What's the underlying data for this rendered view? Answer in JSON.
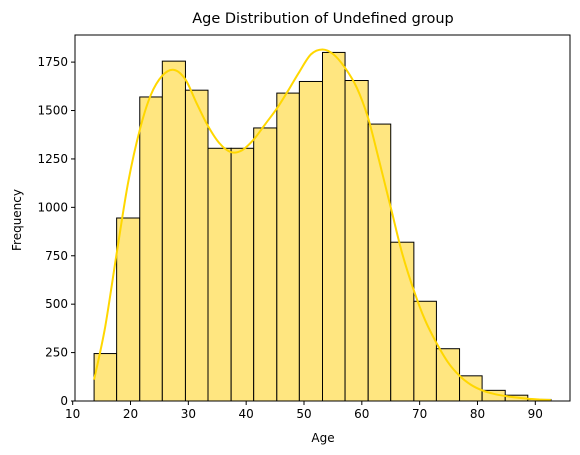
{
  "chart_data": {
    "type": "bar",
    "title": "Age Distribution of Undefined group",
    "xlabel": "Age",
    "ylabel": "Frequency",
    "xlim": [
      10.4,
      96
    ],
    "ylim": [
      0,
      1890
    ],
    "xticks": [
      10,
      20,
      30,
      40,
      50,
      60,
      70,
      80,
      90
    ],
    "yticks": [
      0,
      250,
      500,
      750,
      1000,
      1250,
      1500,
      1750
    ],
    "grid": false,
    "colors": {
      "bar_fill": "#ffe680",
      "bar_edge": "#000000",
      "kde_line": "#ffd700"
    },
    "bins": [
      {
        "x0": 13.7,
        "x1": 17.6,
        "value": 245
      },
      {
        "x0": 17.6,
        "x1": 21.6,
        "value": 945
      },
      {
        "x0": 21.6,
        "x1": 25.5,
        "value": 1570
      },
      {
        "x0": 25.5,
        "x1": 29.5,
        "value": 1755
      },
      {
        "x0": 29.5,
        "x1": 33.4,
        "value": 1605
      },
      {
        "x0": 33.4,
        "x1": 37.4,
        "value": 1305
      },
      {
        "x0": 37.4,
        "x1": 41.3,
        "value": 1305
      },
      {
        "x0": 41.3,
        "x1": 45.3,
        "value": 1410
      },
      {
        "x0": 45.3,
        "x1": 49.2,
        "value": 1590
      },
      {
        "x0": 49.2,
        "x1": 53.2,
        "value": 1650
      },
      {
        "x0": 53.2,
        "x1": 57.1,
        "value": 1800
      },
      {
        "x0": 57.1,
        "x1": 61.1,
        "value": 1655
      },
      {
        "x0": 61.1,
        "x1": 65.0,
        "value": 1430
      },
      {
        "x0": 65.0,
        "x1": 69.0,
        "value": 820
      },
      {
        "x0": 69.0,
        "x1": 72.9,
        "value": 515
      },
      {
        "x0": 72.9,
        "x1": 76.9,
        "value": 270
      },
      {
        "x0": 76.9,
        "x1": 80.8,
        "value": 130
      },
      {
        "x0": 80.8,
        "x1": 84.8,
        "value": 55
      },
      {
        "x0": 84.8,
        "x1": 88.7,
        "value": 30
      },
      {
        "x0": 88.7,
        "x1": 92.7,
        "value": 8
      }
    ],
    "kde": {
      "x": [
        13.7,
        15.6,
        17.6,
        19.6,
        21.6,
        23.5,
        25.5,
        27.5,
        29.5,
        31.4,
        33.4,
        35.4,
        37.4,
        39.3,
        41.3,
        43.3,
        45.3,
        47.2,
        49.2,
        51.2,
        53.2,
        55.1,
        57.1,
        59.1,
        61.1,
        63.0,
        65.0,
        67.0,
        69.0,
        70.9,
        72.9,
        74.9,
        76.9,
        78.8,
        80.8,
        82.8,
        84.8,
        86.7,
        88.7,
        90.7,
        92.7
      ],
      "y": [
        110,
        380,
        760,
        1130,
        1400,
        1580,
        1680,
        1710,
        1660,
        1540,
        1420,
        1330,
        1285,
        1295,
        1350,
        1430,
        1510,
        1600,
        1700,
        1790,
        1815,
        1790,
        1720,
        1620,
        1460,
        1240,
        1000,
        760,
        570,
        420,
        300,
        200,
        130,
        85,
        55,
        37,
        26,
        18,
        12,
        8,
        5
      ]
    }
  }
}
